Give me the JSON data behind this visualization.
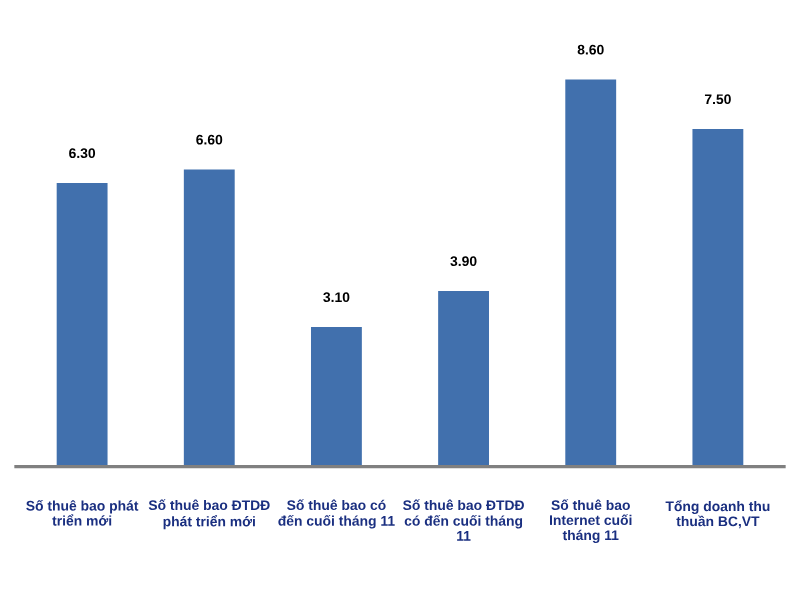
{
  "chart_data": {
    "type": "bar",
    "categories": [
      "Số thuê bao phát triển mới",
      "Số thuê bao ĐTDĐ phát triển mới",
      "Số thuê bao có đến cuối tháng 11",
      "Số thuê bao ĐTDĐ có đến cuối tháng 11",
      "Số thuê bao Internet cuối tháng 11",
      "Tổng doanh thu thuần BC,VT"
    ],
    "values": [
      6.3,
      6.6,
      3.1,
      3.9,
      8.6,
      7.5
    ],
    "value_labels": [
      "6.30",
      "6.60",
      "3.10",
      "3.90",
      "8.60",
      "7.50"
    ],
    "color": "#4170ad",
    "grid": false,
    "legend": false,
    "tick_labels": "x"
  }
}
